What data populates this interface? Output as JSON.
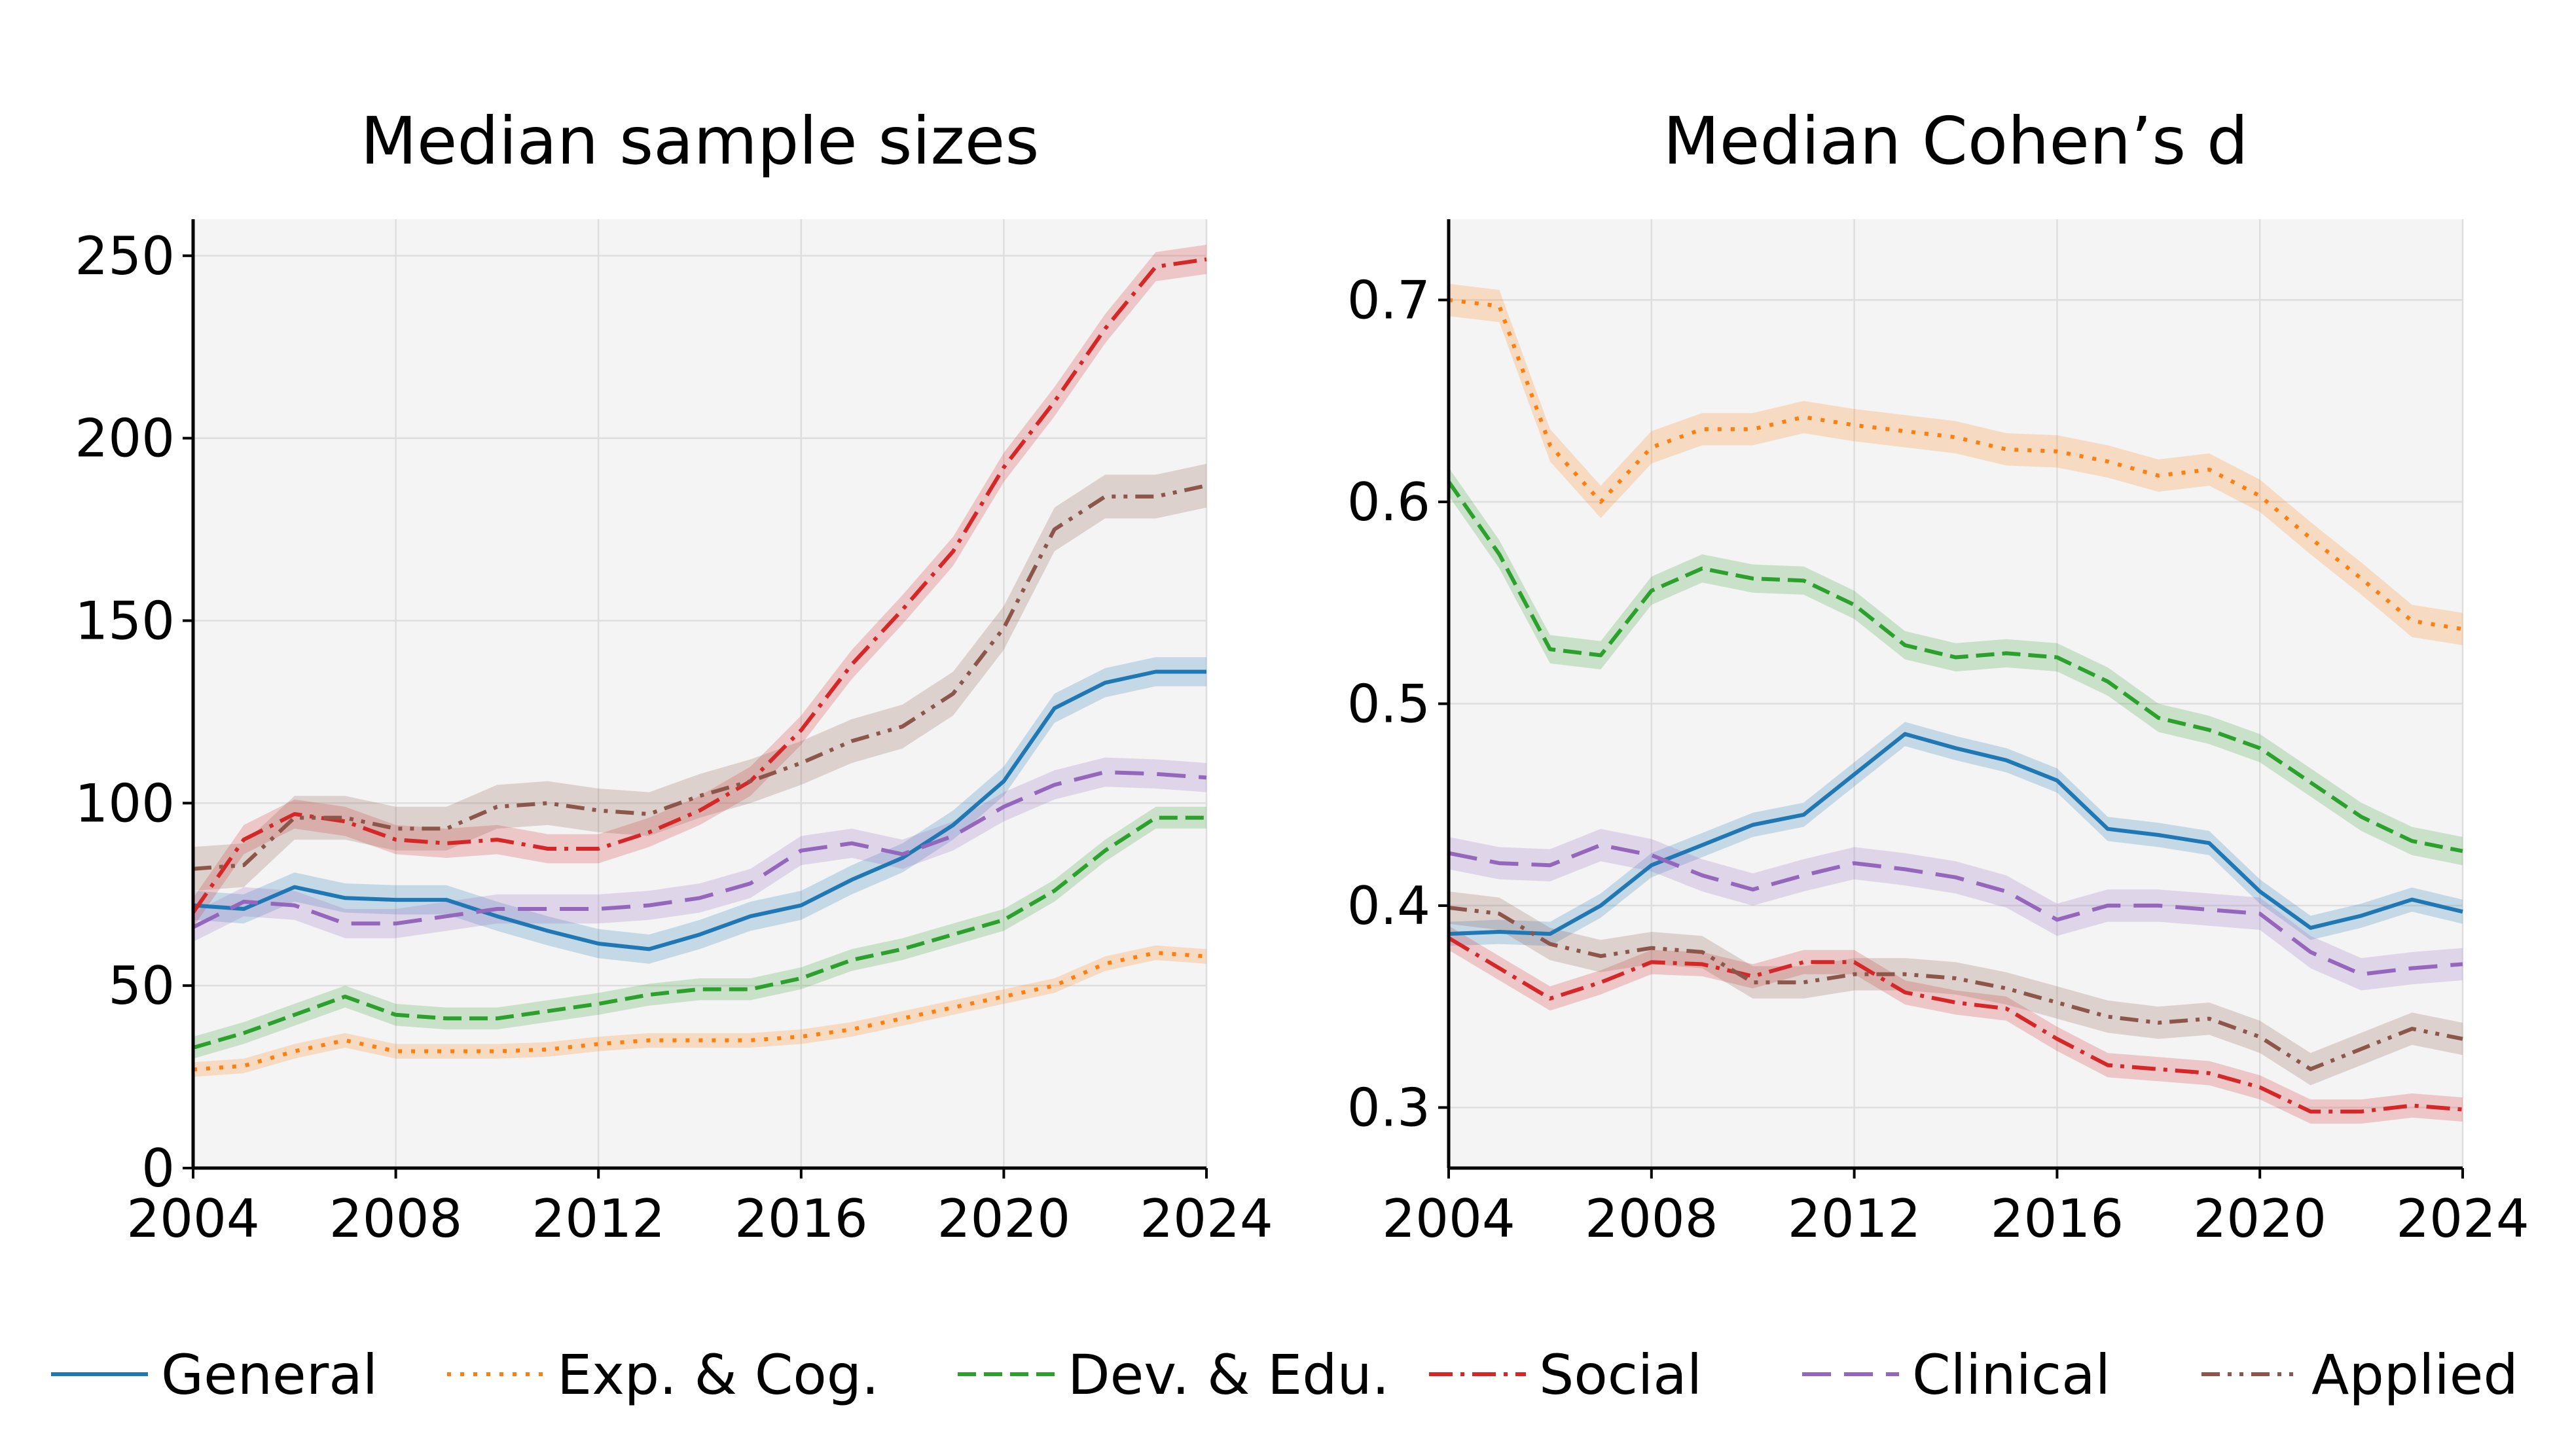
{
  "chart_data": [
    {
      "type": "line",
      "title": "Median sample sizes",
      "xlabel": "",
      "ylabel": "",
      "xlim": [
        2004,
        2024
      ],
      "ylim": [
        0,
        260
      ],
      "xticks": [
        2004,
        2008,
        2012,
        2016,
        2020,
        2024
      ],
      "yticks": [
        0,
        50,
        100,
        150,
        200,
        250
      ],
      "ytick_labels": [
        "0",
        "50",
        "100",
        "150",
        "200",
        "250"
      ],
      "grid": true,
      "x": [
        2004,
        2005,
        2006,
        2007,
        2008,
        2009,
        2010,
        2011,
        2012,
        2013,
        2014,
        2015,
        2016,
        2017,
        2018,
        2019,
        2020,
        2021,
        2022,
        2023,
        2024
      ],
      "series": [
        {
          "name": "General",
          "values": [
            72,
            71,
            77,
            74,
            73.5,
            73.5,
            69,
            65,
            61.5,
            60,
            64,
            69,
            72,
            79,
            85,
            94,
            106,
            126,
            133,
            136,
            136
          ],
          "band": 4
        },
        {
          "name": "Exp. & Cog.",
          "values": [
            27,
            28,
            32,
            35,
            32,
            32,
            32,
            32.5,
            34,
            35,
            35,
            35,
            36,
            38,
            41,
            44,
            47,
            50,
            56,
            59,
            58
          ],
          "band": 2
        },
        {
          "name": "Dev. & Edu.",
          "values": [
            33,
            37,
            42,
            47,
            42,
            41,
            41,
            43,
            45,
            47.5,
            49,
            49,
            52,
            57,
            60,
            64,
            68,
            76,
            87,
            96,
            96
          ],
          "band": 3
        },
        {
          "name": "Social",
          "values": [
            70,
            90,
            97,
            95,
            90,
            89,
            90,
            87.5,
            87.5,
            92,
            98,
            106,
            120,
            138,
            153,
            169,
            192,
            210,
            230,
            247,
            249
          ],
          "band": 4
        },
        {
          "name": "Clinical",
          "values": [
            66,
            73,
            72,
            67,
            67,
            69,
            71,
            71,
            71,
            72,
            74,
            78,
            87,
            89,
            86,
            91,
            99,
            105,
            108.5,
            108,
            107
          ],
          "band": 4
        },
        {
          "name": "Applied",
          "values": [
            82,
            83,
            96,
            96,
            93,
            93,
            99,
            100,
            98,
            97,
            102,
            106,
            111,
            117,
            121,
            130,
            148,
            175,
            184,
            184,
            187
          ],
          "band": 6
        }
      ]
    },
    {
      "type": "line",
      "title": "Median Cohen’s d",
      "xlabel": "",
      "ylabel": "",
      "xlim": [
        2004,
        2024
      ],
      "ylim": [
        0.27,
        0.74
      ],
      "xticks": [
        2004,
        2008,
        2012,
        2016,
        2020,
        2024
      ],
      "yticks": [
        0.3,
        0.4,
        0.5,
        0.6,
        0.7
      ],
      "ytick_labels": [
        "0.3",
        "0.4",
        "0.5",
        "0.6",
        "0.7"
      ],
      "grid": true,
      "x": [
        2004,
        2005,
        2006,
        2007,
        2008,
        2009,
        2010,
        2011,
        2012,
        2013,
        2014,
        2015,
        2016,
        2017,
        2018,
        2019,
        2020,
        2021,
        2022,
        2023,
        2024
      ],
      "series": [
        {
          "name": "General",
          "values": [
            0.386,
            0.387,
            0.386,
            0.4,
            0.42,
            0.43,
            0.44,
            0.445,
            0.465,
            0.485,
            0.478,
            0.472,
            0.462,
            0.438,
            0.435,
            0.431,
            0.407,
            0.389,
            0.395,
            0.403,
            0.397
          ],
          "band": 0.006
        },
        {
          "name": "Exp. & Cog.",
          "values": [
            0.7,
            0.697,
            0.628,
            0.6,
            0.627,
            0.636,
            0.636,
            0.642,
            0.638,
            0.635,
            0.632,
            0.626,
            0.625,
            0.62,
            0.613,
            0.616,
            0.603,
            0.582,
            0.562,
            0.541,
            0.537
          ],
          "band": 0.008
        },
        {
          "name": "Dev. & Edu.",
          "values": [
            0.61,
            0.574,
            0.527,
            0.524,
            0.556,
            0.567,
            0.562,
            0.561,
            0.549,
            0.529,
            0.523,
            0.525,
            0.523,
            0.511,
            0.493,
            0.487,
            0.478,
            0.461,
            0.444,
            0.432,
            0.427
          ],
          "band": 0.007
        },
        {
          "name": "Social",
          "values": [
            0.384,
            0.369,
            0.354,
            0.362,
            0.372,
            0.371,
            0.365,
            0.372,
            0.372,
            0.357,
            0.352,
            0.349,
            0.334,
            0.321,
            0.319,
            0.317,
            0.31,
            0.298,
            0.298,
            0.301,
            0.299
          ],
          "band": 0.006
        },
        {
          "name": "Clinical",
          "values": [
            0.426,
            0.421,
            0.42,
            0.43,
            0.425,
            0.415,
            0.408,
            0.415,
            0.421,
            0.418,
            0.414,
            0.407,
            0.393,
            0.4,
            0.4,
            0.398,
            0.396,
            0.377,
            0.366,
            0.369,
            0.371
          ],
          "band": 0.008
        },
        {
          "name": "Applied",
          "values": [
            0.399,
            0.396,
            0.381,
            0.375,
            0.379,
            0.377,
            0.362,
            0.362,
            0.366,
            0.366,
            0.364,
            0.359,
            0.352,
            0.345,
            0.342,
            0.344,
            0.335,
            0.319,
            0.329,
            0.339,
            0.334
          ],
          "band": 0.008
        }
      ]
    }
  ],
  "legend": {
    "placement": "bottom",
    "entries": [
      {
        "name": "General",
        "color": "#1f77b4",
        "dash": "solid"
      },
      {
        "name": "Exp. & Cog.",
        "color": "#ff7f0e",
        "dash": "dotted"
      },
      {
        "name": "Dev. & Edu.",
        "color": "#2ca02c",
        "dash": "dashed"
      },
      {
        "name": "Social",
        "color": "#d62728",
        "dash": "dashdot"
      },
      {
        "name": "Clinical",
        "color": "#9467bd",
        "dash": "longdash"
      },
      {
        "name": "Applied",
        "color": "#8c564b",
        "dash": "dashdotdot"
      }
    ]
  }
}
